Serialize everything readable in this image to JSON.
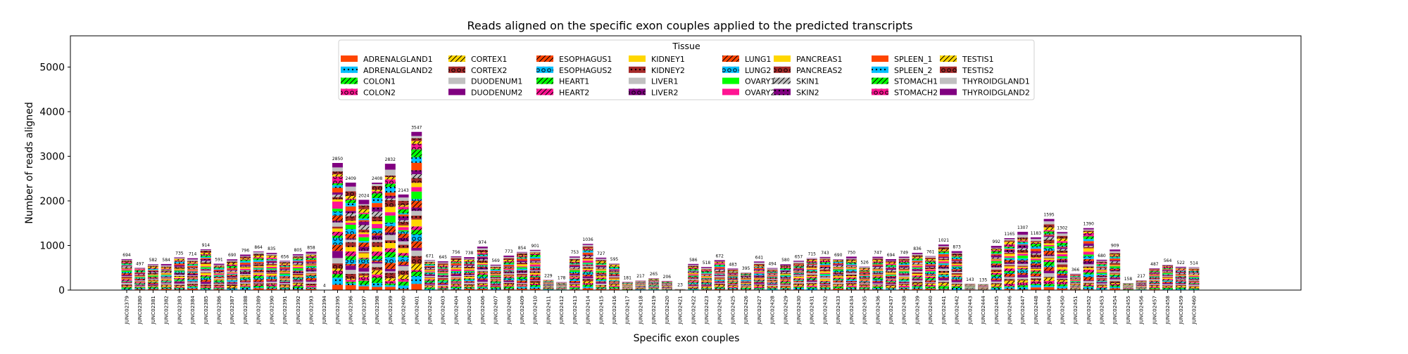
{
  "chart_data": {
    "type": "bar",
    "stacked": true,
    "title": "Reads aligned on the specific exon couples applied to the predicted transcripts",
    "xlabel": "Specific exon couples",
    "ylabel": "Number of reads aligned",
    "ylim": [
      0,
      5700
    ],
    "yticks": [
      0,
      1000,
      2000,
      3000,
      4000,
      5000
    ],
    "grid": false,
    "legend": {
      "title": "Tissue",
      "placement": "top-center",
      "columns": 8
    },
    "categories": [
      "JUNC02379",
      "JUNC02380",
      "JUNC02381",
      "JUNC02382",
      "JUNC02383",
      "JUNC02384",
      "JUNC02385",
      "JUNC02386",
      "JUNC02387",
      "JUNC02388",
      "JUNC02389",
      "JUNC02390",
      "JUNC02391",
      "JUNC02392",
      "JUNC02393",
      "JUNC02394",
      "JUNC02395",
      "JUNC02396",
      "JUNC02397",
      "JUNC02398",
      "JUNC02399",
      "JUNC02400",
      "JUNC02401",
      "JUNC02402",
      "JUNC02403",
      "JUNC02404",
      "JUNC02405",
      "JUNC02406",
      "JUNC02407",
      "JUNC02408",
      "JUNC02409",
      "JUNC02410",
      "JUNC02411",
      "JUNC02412",
      "JUNC02413",
      "JUNC02414",
      "JUNC02415",
      "JUNC02416",
      "JUNC02417",
      "JUNC02418",
      "JUNC02419",
      "JUNC02420",
      "JUNC02421",
      "JUNC02422",
      "JUNC02423",
      "JUNC02424",
      "JUNC02425",
      "JUNC02426",
      "JUNC02427",
      "JUNC02428",
      "JUNC02429",
      "JUNC02430",
      "JUNC02431",
      "JUNC02432",
      "JUNC02433",
      "JUNC02434",
      "JUNC02435",
      "JUNC02436",
      "JUNC02437",
      "JUNC02438",
      "JUNC02439",
      "JUNC02440",
      "JUNC02441",
      "JUNC02442",
      "JUNC02443",
      "JUNC02444",
      "JUNC02445",
      "JUNC02446",
      "JUNC02447",
      "JUNC02448",
      "JUNC02449",
      "JUNC02450",
      "JUNC02451",
      "JUNC02452",
      "JUNC02453",
      "JUNC02454",
      "JUNC02455",
      "JUNC02456",
      "JUNC02457",
      "JUNC02458",
      "JUNC02459",
      "JUNC02460"
    ],
    "totals": [
      694,
      497,
      582,
      584,
      735,
      714,
      914,
      591,
      690,
      796,
      864,
      835,
      656,
      805,
      858,
      4,
      2850,
      2409,
      2024,
      2408,
      2832,
      2143,
      3547,
      671,
      645,
      756,
      738,
      974,
      569,
      773,
      854,
      901,
      229,
      178,
      753,
      1036,
      727,
      595,
      181,
      217,
      265,
      206,
      23,
      586,
      518,
      672,
      483,
      395,
      641,
      494,
      580,
      657,
      715,
      743,
      690,
      750,
      526,
      747,
      694,
      749,
      836,
      761,
      1021,
      873,
      143,
      135,
      992,
      1165,
      1307,
      1183,
      1595,
      1302,
      366,
      1390,
      680,
      909,
      158,
      217,
      487,
      564,
      522,
      514
    ],
    "series": [
      {
        "name": "ADRENALGLAND1",
        "color": "#ff4500",
        "hatch": "none"
      },
      {
        "name": "ADRENALGLAND2",
        "color": "#00bfff",
        "hatch": "dot"
      },
      {
        "name": "COLON1",
        "color": "#00ff00",
        "hatch": "slash"
      },
      {
        "name": "COLON2",
        "color": "#ff1493",
        "hatch": "circle"
      },
      {
        "name": "CORTEX1",
        "color": "#ffd700",
        "hatch": "slash"
      },
      {
        "name": "CORTEX2",
        "color": "#a52a2a",
        "hatch": "circle"
      },
      {
        "name": "DUODENUM1",
        "color": "#c0c0c0",
        "hatch": "none"
      },
      {
        "name": "DUODENUM2",
        "color": "#800080",
        "hatch": "none"
      },
      {
        "name": "ESOPHAGUS1",
        "color": "#ff4500",
        "hatch": "slash"
      },
      {
        "name": "ESOPHAGUS2",
        "color": "#00bfff",
        "hatch": "circle"
      },
      {
        "name": "HEART1",
        "color": "#00ff00",
        "hatch": "slash"
      },
      {
        "name": "HEART2",
        "color": "#ff1493",
        "hatch": "slash"
      },
      {
        "name": "KIDNEY1",
        "color": "#ffd700",
        "hatch": "none"
      },
      {
        "name": "KIDNEY2",
        "color": "#a52a2a",
        "hatch": "dot"
      },
      {
        "name": "LIVER1",
        "color": "#c0c0c0",
        "hatch": "none"
      },
      {
        "name": "LIVER2",
        "color": "#800080",
        "hatch": "circle"
      },
      {
        "name": "LUNG1",
        "color": "#ff4500",
        "hatch": "slash"
      },
      {
        "name": "LUNG2",
        "color": "#00bfff",
        "hatch": "circle"
      },
      {
        "name": "OVARY1",
        "color": "#00ff00",
        "hatch": "none"
      },
      {
        "name": "OVARY2",
        "color": "#ff1493",
        "hatch": "none"
      },
      {
        "name": "PANCREAS1",
        "color": "#ffd700",
        "hatch": "none"
      },
      {
        "name": "PANCREAS2",
        "color": "#a52a2a",
        "hatch": "circle"
      },
      {
        "name": "SKIN1",
        "color": "#c0c0c0",
        "hatch": "slash"
      },
      {
        "name": "SKIN2",
        "color": "#800080",
        "hatch": "dot"
      },
      {
        "name": "SPLEEN_1",
        "color": "#ff4500",
        "hatch": "none"
      },
      {
        "name": "SPLEEN_2",
        "color": "#00bfff",
        "hatch": "dot"
      },
      {
        "name": "STOMACH1",
        "color": "#00ff00",
        "hatch": "slash"
      },
      {
        "name": "STOMACH2",
        "color": "#ff1493",
        "hatch": "circle"
      },
      {
        "name": "TESTIS1",
        "color": "#ffd700",
        "hatch": "slash"
      },
      {
        "name": "TESTIS2",
        "color": "#a52a2a",
        "hatch": "circle"
      },
      {
        "name": "THYROIDGLAND1",
        "color": "#c0c0c0",
        "hatch": "none"
      },
      {
        "name": "THYROIDGLAND2",
        "color": "#800080",
        "hatch": "none"
      }
    ]
  }
}
